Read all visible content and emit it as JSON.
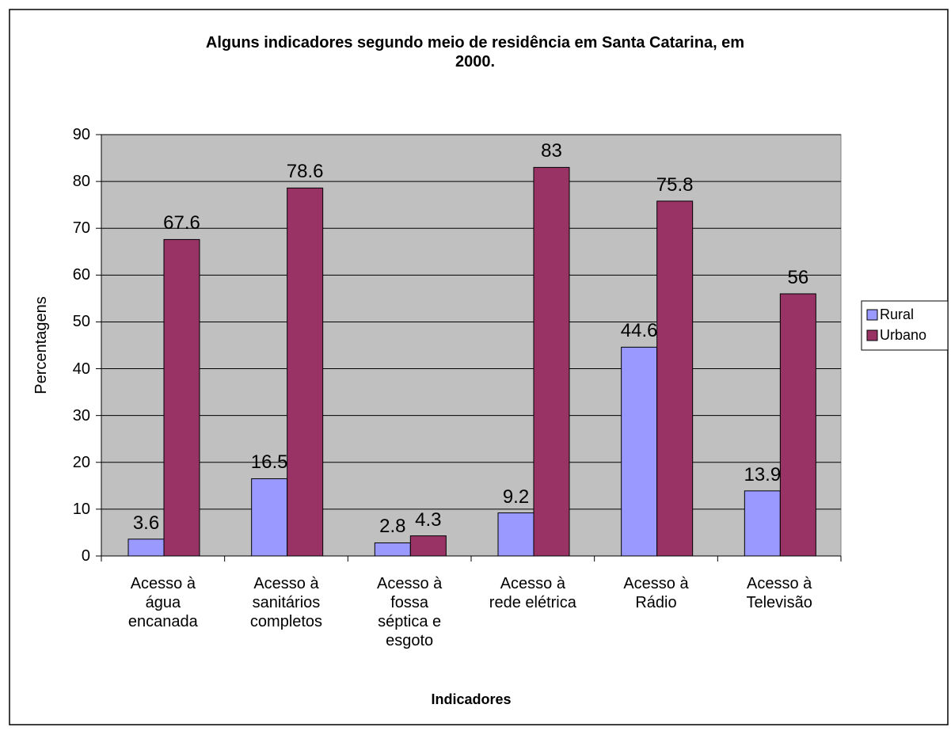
{
  "chart_data": {
    "type": "bar",
    "title": "Alguns indicadores segundo meio de residência em Santa Catarina, em\n2000.",
    "x_label": "Indicadores",
    "y_label": "Percentagens",
    "categories": [
      "Acesso à\nágua\nencanada",
      "Acesso à\nsanitários\ncompletos",
      "Acesso à\nfossa\nséptica e\nesgoto",
      "Acesso à\nrede elétrica",
      "Acesso à\nRádio",
      "Acesso à\nTelevisão"
    ],
    "series": [
      {
        "name": "Rural",
        "color": "#9999ff",
        "values": [
          3.6,
          16.5,
          2.8,
          9.2,
          44.6,
          13.9
        ]
      },
      {
        "name": "Urbano",
        "color": "#993366",
        "values": [
          67.6,
          78.6,
          4.3,
          83,
          75.8,
          56
        ]
      }
    ],
    "ylim": [
      0,
      90
    ],
    "yticks": [
      0,
      10,
      20,
      30,
      40,
      50,
      60,
      70,
      80,
      90
    ],
    "grid": true,
    "legend": "right"
  }
}
